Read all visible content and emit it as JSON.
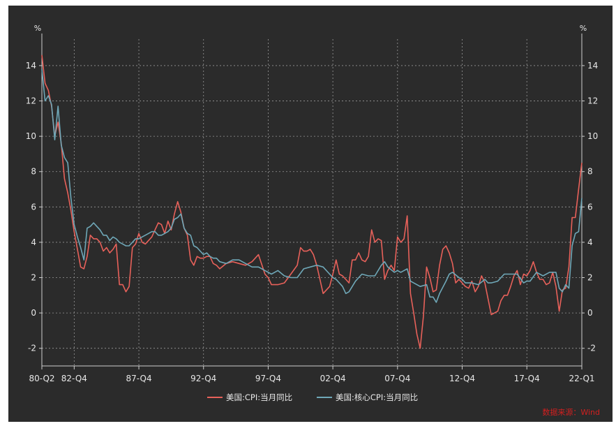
{
  "chart_data": {
    "type": "line",
    "unit_left": "%",
    "unit_right": "%",
    "ylim": [
      -3,
      15.5
    ],
    "y_ticks": [
      -2,
      0,
      2,
      4,
      6,
      8,
      10,
      12,
      14
    ],
    "y_tick_labels": [
      "-2",
      "0",
      "2",
      "4",
      "6",
      "8",
      "10",
      "12",
      "14"
    ],
    "x_range": [
      1980.25,
      2022.0
    ],
    "x_ticks": [
      {
        "label": "80-Q2",
        "t": 1980.25
      },
      {
        "label": "82-Q4",
        "t": 1982.75
      },
      {
        "label": "87-Q4",
        "t": 1987.75
      },
      {
        "label": "92-Q4",
        "t": 1992.75
      },
      {
        "label": "97-Q4",
        "t": 1997.75
      },
      {
        "label": "02-Q4",
        "t": 2002.75
      },
      {
        "label": "07-Q4",
        "t": 2007.75
      },
      {
        "label": "12-Q4",
        "t": 2012.75
      },
      {
        "label": "17-Q4",
        "t": 2017.75
      },
      {
        "label": "22-Q1",
        "t": 2022.0
      }
    ],
    "grid": true,
    "legend_position": "bottom",
    "series": [
      {
        "name": "美国:CPI:当月同比",
        "color": "#e8615a",
        "points": [
          [
            1980.25,
            14.6
          ],
          [
            1980.5,
            13.0
          ],
          [
            1980.75,
            12.6
          ],
          [
            1981.0,
            11.7
          ],
          [
            1981.25,
            10.0
          ],
          [
            1981.5,
            10.8
          ],
          [
            1981.75,
            9.6
          ],
          [
            1982.0,
            7.6
          ],
          [
            1982.25,
            6.8
          ],
          [
            1982.5,
            5.8
          ],
          [
            1982.75,
            4.6
          ],
          [
            1983.0,
            3.6
          ],
          [
            1983.25,
            2.6
          ],
          [
            1983.5,
            2.5
          ],
          [
            1983.75,
            3.2
          ],
          [
            1984.0,
            4.4
          ],
          [
            1984.25,
            4.2
          ],
          [
            1984.5,
            4.2
          ],
          [
            1984.75,
            4.0
          ],
          [
            1985.0,
            3.5
          ],
          [
            1985.25,
            3.7
          ],
          [
            1985.5,
            3.4
          ],
          [
            1985.75,
            3.6
          ],
          [
            1986.0,
            3.9
          ],
          [
            1986.25,
            1.6
          ],
          [
            1986.5,
            1.6
          ],
          [
            1986.75,
            1.2
          ],
          [
            1987.0,
            1.5
          ],
          [
            1987.25,
            3.7
          ],
          [
            1987.5,
            3.9
          ],
          [
            1987.75,
            4.5
          ],
          [
            1988.0,
            4.0
          ],
          [
            1988.25,
            3.9
          ],
          [
            1988.5,
            4.1
          ],
          [
            1988.75,
            4.3
          ],
          [
            1989.0,
            4.7
          ],
          [
            1989.25,
            5.1
          ],
          [
            1989.5,
            5.0
          ],
          [
            1989.75,
            4.5
          ],
          [
            1990.0,
            5.2
          ],
          [
            1990.25,
            4.7
          ],
          [
            1990.5,
            5.6
          ],
          [
            1990.75,
            6.3
          ],
          [
            1991.0,
            5.7
          ],
          [
            1991.25,
            4.8
          ],
          [
            1991.5,
            4.4
          ],
          [
            1991.75,
            3.0
          ],
          [
            1992.0,
            2.7
          ],
          [
            1992.25,
            3.2
          ],
          [
            1992.5,
            3.1
          ],
          [
            1992.75,
            3.1
          ],
          [
            1993.0,
            3.2
          ],
          [
            1993.25,
            3.2
          ],
          [
            1993.5,
            2.8
          ],
          [
            1993.75,
            2.7
          ],
          [
            1994.0,
            2.5
          ],
          [
            1994.5,
            2.8
          ],
          [
            1995.0,
            2.9
          ],
          [
            1995.5,
            2.8
          ],
          [
            1996.0,
            2.7
          ],
          [
            1996.5,
            2.9
          ],
          [
            1997.0,
            3.3
          ],
          [
            1997.5,
            2.2
          ],
          [
            1997.75,
            2.0
          ],
          [
            1998.0,
            1.6
          ],
          [
            1998.5,
            1.6
          ],
          [
            1999.0,
            1.7
          ],
          [
            1999.5,
            2.2
          ],
          [
            2000.0,
            2.7
          ],
          [
            2000.25,
            3.7
          ],
          [
            2000.5,
            3.5
          ],
          [
            2000.75,
            3.5
          ],
          [
            2001.0,
            3.6
          ],
          [
            2001.25,
            3.3
          ],
          [
            2001.5,
            2.7
          ],
          [
            2001.75,
            1.9
          ],
          [
            2002.0,
            1.1
          ],
          [
            2002.25,
            1.3
          ],
          [
            2002.5,
            1.5
          ],
          [
            2002.75,
            2.2
          ],
          [
            2003.0,
            3.0
          ],
          [
            2003.25,
            2.2
          ],
          [
            2003.5,
            2.1
          ],
          [
            2003.75,
            1.9
          ],
          [
            2004.0,
            1.7
          ],
          [
            2004.25,
            3.0
          ],
          [
            2004.5,
            3.0
          ],
          [
            2004.75,
            3.4
          ],
          [
            2005.0,
            3.0
          ],
          [
            2005.25,
            2.9
          ],
          [
            2005.5,
            3.2
          ],
          [
            2005.75,
            4.7
          ],
          [
            2006.0,
            4.0
          ],
          [
            2006.25,
            4.2
          ],
          [
            2006.5,
            4.1
          ],
          [
            2006.75,
            1.9
          ],
          [
            2007.0,
            2.4
          ],
          [
            2007.25,
            2.7
          ],
          [
            2007.5,
            2.4
          ],
          [
            2007.75,
            4.3
          ],
          [
            2008.0,
            4.0
          ],
          [
            2008.25,
            4.2
          ],
          [
            2008.5,
            5.5
          ],
          [
            2008.75,
            1.1
          ],
          [
            2009.0,
            0.0
          ],
          [
            2009.25,
            -1.2
          ],
          [
            2009.5,
            -2.0
          ],
          [
            2009.75,
            -0.2
          ],
          [
            2010.0,
            2.6
          ],
          [
            2010.25,
            2.0
          ],
          [
            2010.5,
            1.2
          ],
          [
            2010.75,
            1.3
          ],
          [
            2011.0,
            2.7
          ],
          [
            2011.25,
            3.6
          ],
          [
            2011.5,
            3.8
          ],
          [
            2011.75,
            3.4
          ],
          [
            2012.0,
            2.8
          ],
          [
            2012.25,
            1.7
          ],
          [
            2012.5,
            1.9
          ],
          [
            2012.75,
            1.7
          ],
          [
            2013.0,
            1.5
          ],
          [
            2013.25,
            1.4
          ],
          [
            2013.5,
            1.8
          ],
          [
            2013.75,
            1.2
          ],
          [
            2014.0,
            1.5
          ],
          [
            2014.25,
            2.1
          ],
          [
            2014.5,
            1.7
          ],
          [
            2014.75,
            0.8
          ],
          [
            2015.0,
            -0.1
          ],
          [
            2015.25,
            0.0
          ],
          [
            2015.5,
            0.1
          ],
          [
            2015.75,
            0.7
          ],
          [
            2016.0,
            1.0
          ],
          [
            2016.25,
            1.0
          ],
          [
            2016.5,
            1.5
          ],
          [
            2016.75,
            2.1
          ],
          [
            2017.0,
            2.4
          ],
          [
            2017.25,
            1.6
          ],
          [
            2017.5,
            2.2
          ],
          [
            2017.75,
            2.1
          ],
          [
            2018.0,
            2.4
          ],
          [
            2018.25,
            2.9
          ],
          [
            2018.5,
            2.3
          ],
          [
            2018.75,
            1.9
          ],
          [
            2019.0,
            1.9
          ],
          [
            2019.25,
            1.6
          ],
          [
            2019.5,
            1.7
          ],
          [
            2019.75,
            2.3
          ],
          [
            2020.0,
            1.5
          ],
          [
            2020.25,
            0.1
          ],
          [
            2020.5,
            1.3
          ],
          [
            2020.75,
            1.4
          ],
          [
            2021.0,
            2.6
          ],
          [
            2021.25,
            5.4
          ],
          [
            2021.5,
            5.4
          ],
          [
            2021.75,
            7.0
          ],
          [
            2022.0,
            8.5
          ]
        ]
      },
      {
        "name": "美国:核心CPI:当月同比",
        "color": "#6fa8b8",
        "points": [
          [
            1980.25,
            13.8
          ],
          [
            1980.5,
            12.0
          ],
          [
            1980.75,
            12.3
          ],
          [
            1981.0,
            11.8
          ],
          [
            1981.25,
            9.8
          ],
          [
            1981.5,
            11.7
          ],
          [
            1981.75,
            9.5
          ],
          [
            1982.0,
            8.8
          ],
          [
            1982.25,
            8.5
          ],
          [
            1982.5,
            6.5
          ],
          [
            1982.75,
            5.0
          ],
          [
            1983.0,
            4.3
          ],
          [
            1983.25,
            3.7
          ],
          [
            1983.5,
            3.0
          ],
          [
            1983.75,
            4.8
          ],
          [
            1984.0,
            4.9
          ],
          [
            1984.25,
            5.1
          ],
          [
            1984.5,
            4.9
          ],
          [
            1984.75,
            4.7
          ],
          [
            1985.0,
            4.4
          ],
          [
            1985.25,
            4.4
          ],
          [
            1985.5,
            4.1
          ],
          [
            1985.75,
            4.3
          ],
          [
            1986.0,
            4.2
          ],
          [
            1986.25,
            4.0
          ],
          [
            1986.5,
            3.9
          ],
          [
            1986.75,
            3.8
          ],
          [
            1987.0,
            3.8
          ],
          [
            1987.25,
            4.0
          ],
          [
            1987.5,
            4.2
          ],
          [
            1987.75,
            4.2
          ],
          [
            1988.0,
            4.3
          ],
          [
            1988.25,
            4.4
          ],
          [
            1988.5,
            4.5
          ],
          [
            1988.75,
            4.6
          ],
          [
            1989.0,
            4.6
          ],
          [
            1989.25,
            4.4
          ],
          [
            1989.5,
            4.4
          ],
          [
            1989.75,
            4.5
          ],
          [
            1990.0,
            4.6
          ],
          [
            1990.25,
            4.8
          ],
          [
            1990.5,
            5.3
          ],
          [
            1990.75,
            5.4
          ],
          [
            1991.0,
            5.6
          ],
          [
            1991.25,
            4.8
          ],
          [
            1991.5,
            4.5
          ],
          [
            1991.75,
            4.4
          ],
          [
            1992.0,
            3.8
          ],
          [
            1992.25,
            3.7
          ],
          [
            1992.5,
            3.5
          ],
          [
            1992.75,
            3.3
          ],
          [
            1993.0,
            3.4
          ],
          [
            1993.25,
            3.2
          ],
          [
            1993.5,
            3.1
          ],
          [
            1993.75,
            3.1
          ],
          [
            1994.0,
            2.9
          ],
          [
            1994.5,
            2.8
          ],
          [
            1995.0,
            3.0
          ],
          [
            1995.5,
            3.0
          ],
          [
            1996.0,
            2.8
          ],
          [
            1996.5,
            2.6
          ],
          [
            1997.0,
            2.6
          ],
          [
            1997.5,
            2.4
          ],
          [
            1998.0,
            2.2
          ],
          [
            1998.5,
            2.4
          ],
          [
            1999.0,
            2.1
          ],
          [
            1999.5,
            2.0
          ],
          [
            2000.0,
            2.0
          ],
          [
            2000.5,
            2.5
          ],
          [
            2001.0,
            2.6
          ],
          [
            2001.5,
            2.7
          ],
          [
            2002.0,
            2.6
          ],
          [
            2002.5,
            2.2
          ],
          [
            2002.75,
            2.0
          ],
          [
            2003.0,
            1.9
          ],
          [
            2003.5,
            1.5
          ],
          [
            2003.75,
            1.1
          ],
          [
            2004.0,
            1.2
          ],
          [
            2004.5,
            1.8
          ],
          [
            2005.0,
            2.2
          ],
          [
            2005.5,
            2.1
          ],
          [
            2006.0,
            2.1
          ],
          [
            2006.5,
            2.7
          ],
          [
            2006.75,
            2.9
          ],
          [
            2007.0,
            2.6
          ],
          [
            2007.5,
            2.3
          ],
          [
            2007.75,
            2.4
          ],
          [
            2008.0,
            2.3
          ],
          [
            2008.5,
            2.5
          ],
          [
            2008.75,
            1.8
          ],
          [
            2009.0,
            1.7
          ],
          [
            2009.5,
            1.5
          ],
          [
            2010.0,
            1.6
          ],
          [
            2010.25,
            0.9
          ],
          [
            2010.5,
            0.9
          ],
          [
            2010.75,
            0.6
          ],
          [
            2011.0,
            1.1
          ],
          [
            2011.5,
            1.8
          ],
          [
            2011.75,
            2.2
          ],
          [
            2012.0,
            2.3
          ],
          [
            2012.5,
            2.0
          ],
          [
            2012.75,
            1.9
          ],
          [
            2013.0,
            1.7
          ],
          [
            2013.5,
            1.7
          ],
          [
            2014.0,
            1.6
          ],
          [
            2014.5,
            1.9
          ],
          [
            2014.75,
            1.7
          ],
          [
            2015.0,
            1.7
          ],
          [
            2015.5,
            1.8
          ],
          [
            2016.0,
            2.2
          ],
          [
            2016.5,
            2.2
          ],
          [
            2017.0,
            2.2
          ],
          [
            2017.5,
            1.7
          ],
          [
            2017.75,
            1.8
          ],
          [
            2018.0,
            1.8
          ],
          [
            2018.5,
            2.3
          ],
          [
            2018.75,
            2.2
          ],
          [
            2019.0,
            2.1
          ],
          [
            2019.5,
            2.3
          ],
          [
            2020.0,
            2.3
          ],
          [
            2020.25,
            1.4
          ],
          [
            2020.5,
            1.2
          ],
          [
            2020.75,
            1.6
          ],
          [
            2021.0,
            1.4
          ],
          [
            2021.25,
            3.8
          ],
          [
            2021.5,
            4.5
          ],
          [
            2021.75,
            4.6
          ],
          [
            2022.0,
            6.5
          ]
        ]
      }
    ],
    "source_note": "数据来源：Wind"
  }
}
